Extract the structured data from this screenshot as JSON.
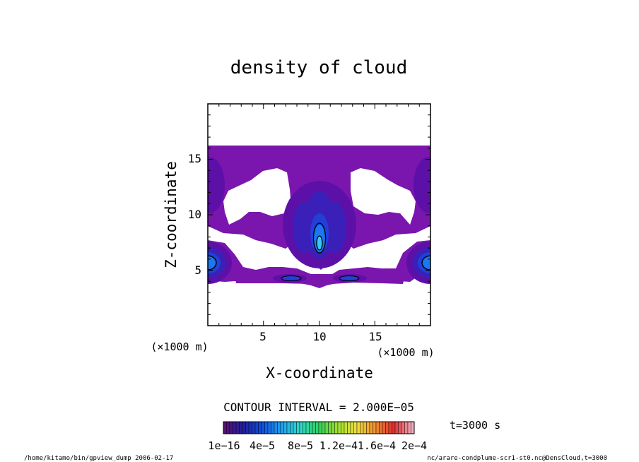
{
  "chart_data": {
    "type": "heatmap",
    "title": "density of cloud",
    "xlabel": "X-coordinate",
    "ylabel": "Z-coordinate",
    "x_unit": "(×1000 m)",
    "y_unit": "(×1000 m)",
    "xlim": [
      0,
      20
    ],
    "ylim": [
      0,
      20
    ],
    "x_ticks": [
      "5",
      "10",
      "15"
    ],
    "y_ticks": [
      "5",
      "10",
      "15"
    ],
    "contour_interval_text": "CONTOUR INTERVAL = 2.000E−05",
    "time_text": "t=3000 s",
    "colorbar_labels": [
      "1e−16",
      "4e−5",
      "8e−5",
      "1.2e−4",
      "1.6e−4",
      "2e−4"
    ],
    "colorbar_range": [
      1e-16,
      0.0002
    ],
    "colorbar_colors": [
      "#5a0f73",
      "#2020a0",
      "#1050e0",
      "#20a0f0",
      "#30d8c8",
      "#30d060",
      "#a0e030",
      "#f0e040",
      "#f09030",
      "#e03030",
      "#f0b0c0"
    ],
    "field_colors": {
      "level1": "#7a16ae",
      "level2": "#5c10a8",
      "level3": "#3a20b8",
      "level4": "#2040d8",
      "level5": "#1a78f0",
      "level6": "#3ac8f8"
    },
    "contour_line_color": "#000000"
  },
  "footer": {
    "left": "/home/kitamo/bin/gpview_dump  2006-02-17",
    "right": "nc/arare-condplume-scr1-st0.nc@DensCloud,t=3000"
  }
}
